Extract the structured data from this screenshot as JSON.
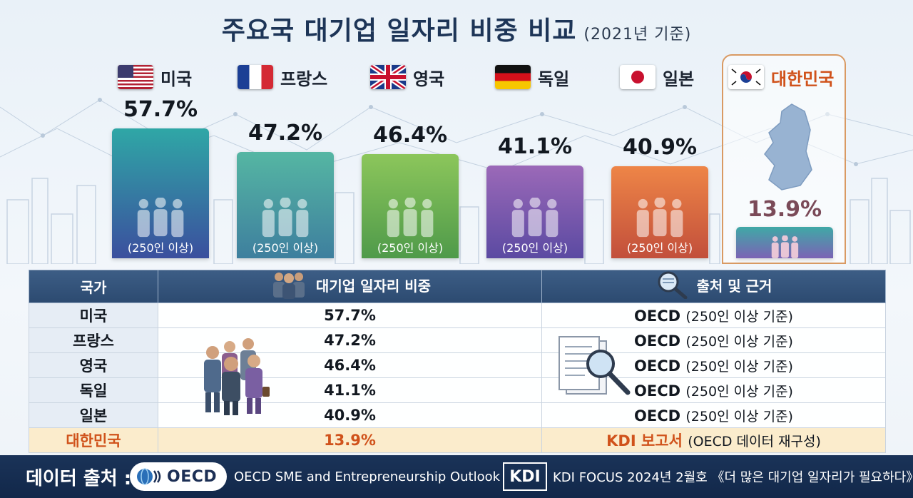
{
  "title": {
    "main": "주요국 대기업 일자리 비중 비교",
    "sub": "(2021년 기준)"
  },
  "chart_data": {
    "type": "bar",
    "categories": [
      "미국",
      "프랑스",
      "영국",
      "독일",
      "일본",
      "대한민국"
    ],
    "values": [
      57.7,
      47.2,
      46.4,
      41.1,
      40.9,
      13.9
    ],
    "value_labels": [
      "57.7%",
      "47.2%",
      "46.4%",
      "41.1%",
      "40.9%",
      "13.9%"
    ],
    "bar_footnote": "(250인 이상)",
    "flags": [
      "us-flag",
      "fr-flag",
      "uk-flag",
      "de-flag",
      "jp-flag",
      "kr-flag"
    ],
    "colors_top": [
      "#2fa7a6",
      "#55b6a3",
      "#8cc65b",
      "#9b69b8",
      "#ee8547",
      "#3fa9a6"
    ],
    "colors_bottom": [
      "#3b4f9e",
      "#3e7f9e",
      "#4f9a4a",
      "#5b4aa2",
      "#c24f3b",
      "#7b63b5"
    ],
    "highlight_color": "#d0521b",
    "ylim": [
      0,
      60
    ]
  },
  "table": {
    "headers": [
      "국가",
      "대기업 일자리 비중",
      "출처 및 근거"
    ],
    "rows": [
      {
        "country": "미국",
        "share": "57.7%",
        "source_main": "OECD",
        "source_paren": "(250인 이상 기준)"
      },
      {
        "country": "프랑스",
        "share": "47.2%",
        "source_main": "OECD",
        "source_paren": "(250인 이상 기준)"
      },
      {
        "country": "영국",
        "share": "46.4%",
        "source_main": "OECD",
        "source_paren": "(250인 이상 기준)"
      },
      {
        "country": "독일",
        "share": "41.1%",
        "source_main": "OECD",
        "source_paren": "(250인 이상 기준)"
      },
      {
        "country": "일본",
        "share": "40.9%",
        "source_main": "OECD",
        "source_paren": "(250인 이상 기준)"
      },
      {
        "country": "대한민국",
        "share": "13.9%",
        "source_main": "KDI 보고서",
        "source_paren": "(OECD 데이터 재구성)"
      }
    ]
  },
  "footer": {
    "label": "데이터 출처 :",
    "oecd_logo": "OECD",
    "source1": "OECD SME and Entrepreneurship Outlook",
    "kdi_logo": "KDI",
    "source2": "KDI FOCUS 2024년 2월호 《더 많은 대기업 일자리가 필요하다》"
  }
}
